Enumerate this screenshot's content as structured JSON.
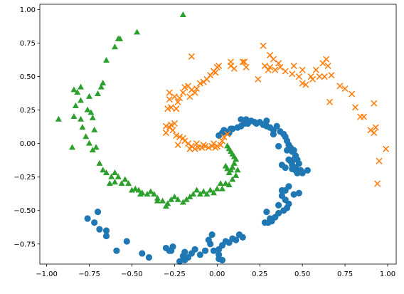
{
  "chart_data": {
    "type": "scatter",
    "title": "",
    "xlabel": "",
    "ylabel": "",
    "xlim": [
      -1.04,
      1.05
    ],
    "ylim": [
      -0.9,
      1.04
    ],
    "xticks": [
      -1.0,
      -0.75,
      -0.5,
      -0.25,
      0.0,
      0.25,
      0.5,
      0.75,
      1.0
    ],
    "xtick_labels": [
      "−1.00",
      "−0.75",
      "−0.50",
      "−0.25",
      "0.00",
      "0.25",
      "0.50",
      "0.75",
      "1.00"
    ],
    "yticks": [
      -0.75,
      -0.5,
      -0.25,
      0.0,
      0.25,
      0.5,
      0.75,
      1.0
    ],
    "ytick_labels": [
      "−0.75",
      "−0.50",
      "−0.25",
      "0.00",
      "0.25",
      "0.50",
      "0.75",
      "1.00"
    ],
    "grid": false,
    "legend": false,
    "series": [
      {
        "marker": "circle",
        "color": "#1f77b4",
        "points": [
          [
            0.01,
            0.06
          ],
          [
            0.03,
            0.08
          ],
          [
            0.05,
            0.09
          ],
          [
            0.07,
            0.08
          ],
          [
            0.04,
            0.1
          ],
          [
            0.09,
            0.11
          ],
          [
            0.12,
            0.12
          ],
          [
            0.14,
            0.13
          ],
          [
            0.16,
            0.15
          ],
          [
            0.18,
            0.15
          ],
          [
            0.2,
            0.17
          ],
          [
            0.22,
            0.16
          ],
          [
            0.14,
            0.18
          ],
          [
            0.17,
            0.18
          ],
          [
            0.25,
            0.16
          ],
          [
            0.27,
            0.14
          ],
          [
            0.29,
            0.17
          ],
          [
            0.31,
            0.12
          ],
          [
            0.33,
            0.1
          ],
          [
            0.35,
            0.13
          ],
          [
            0.37,
            0.09
          ],
          [
            0.39,
            0.07
          ],
          [
            0.4,
            0.05
          ],
          [
            0.41,
            0.02
          ],
          [
            0.42,
            -0.01
          ],
          [
            0.43,
            -0.03
          ],
          [
            0.44,
            -0.06
          ],
          [
            0.45,
            -0.05
          ],
          [
            0.46,
            -0.09
          ],
          [
            0.47,
            -0.12
          ],
          [
            0.48,
            -0.15
          ],
          [
            0.46,
            -0.18
          ],
          [
            0.44,
            -0.19
          ],
          [
            0.46,
            -0.2
          ],
          [
            0.49,
            -0.2
          ],
          [
            0.47,
            -0.22
          ],
          [
            0.5,
            -0.22
          ],
          [
            0.53,
            -0.2
          ],
          [
            0.42,
            -0.12
          ],
          [
            0.4,
            -0.18
          ],
          [
            0.38,
            -0.16
          ],
          [
            0.41,
            -0.05
          ],
          [
            0.36,
            -0.02
          ],
          [
            0.33,
            0.07
          ],
          [
            0.29,
            0.13
          ],
          [
            0.23,
            0.15
          ],
          [
            0.45,
            -0.12
          ],
          [
            0.44,
            -0.16
          ],
          [
            0.43,
            -0.13
          ],
          [
            0.08,
            0.11
          ],
          [
            0.42,
            -0.32
          ],
          [
            0.4,
            -0.35
          ],
          [
            0.38,
            -0.39
          ],
          [
            0.45,
            -0.38
          ],
          [
            0.4,
            -0.42
          ],
          [
            0.42,
            -0.45
          ],
          [
            0.41,
            -0.48
          ],
          [
            0.39,
            -0.5
          ],
          [
            0.36,
            -0.52
          ],
          [
            0.34,
            -0.55
          ],
          [
            0.32,
            -0.58
          ],
          [
            0.3,
            -0.59
          ],
          [
            0.28,
            -0.59
          ],
          [
            0.29,
            -0.51
          ],
          [
            0.36,
            -0.46
          ],
          [
            0.48,
            -0.37
          ],
          [
            0.38,
            -0.35
          ],
          [
            0.31,
            -0.56
          ],
          [
            0.15,
            -0.7
          ],
          [
            0.13,
            -0.68
          ],
          [
            0.11,
            -0.72
          ],
          [
            0.09,
            -0.71
          ],
          [
            0.07,
            -0.74
          ],
          [
            0.05,
            -0.73
          ],
          [
            0.03,
            -0.76
          ],
          [
            0.01,
            -0.79
          ],
          [
            -0.02,
            -0.8
          ],
          [
            -0.04,
            -0.75
          ],
          [
            -0.03,
            -0.68
          ],
          [
            -0.05,
            -0.72
          ],
          [
            0.01,
            -0.83
          ],
          [
            0.01,
            -0.86
          ],
          [
            -0.07,
            -0.8
          ],
          [
            -0.1,
            -0.83
          ],
          [
            -0.13,
            -0.79
          ],
          [
            -0.15,
            -0.82
          ],
          [
            -0.17,
            -0.85
          ],
          [
            -0.19,
            -0.87
          ],
          [
            -0.2,
            -0.84
          ],
          [
            -0.22,
            -0.88
          ],
          [
            -0.26,
            -0.77
          ],
          [
            -0.28,
            -0.8
          ],
          [
            -0.3,
            -0.78
          ],
          [
            -0.27,
            -0.8
          ],
          [
            -0.4,
            -0.85
          ],
          [
            -0.44,
            -0.82
          ],
          [
            -0.53,
            -0.73
          ],
          [
            -0.59,
            -0.8
          ],
          [
            -0.65,
            -0.69
          ],
          [
            -0.65,
            -0.65
          ],
          [
            -0.69,
            -0.64
          ],
          [
            -0.72,
            -0.59
          ],
          [
            -0.7,
            -0.51
          ],
          [
            -0.76,
            -0.56
          ],
          [
            0.03,
            -0.87
          ],
          [
            -0.19,
            -0.81
          ]
        ]
      },
      {
        "marker": "x",
        "color": "#ff7f0e",
        "points": [
          [
            0.06,
            0.07
          ],
          [
            0.04,
            0.05
          ],
          [
            0.03,
            0.02
          ],
          [
            0.02,
            -0.01
          ],
          [
            0.0,
            -0.02
          ],
          [
            -0.01,
            -0.03
          ],
          [
            -0.03,
            -0.02
          ],
          [
            -0.05,
            -0.03
          ],
          [
            -0.07,
            -0.02
          ],
          [
            -0.09,
            -0.03
          ],
          [
            -0.11,
            -0.03
          ],
          [
            -0.13,
            -0.04
          ],
          [
            -0.15,
            -0.02
          ],
          [
            -0.17,
            -0.0
          ],
          [
            -0.19,
            0.02
          ],
          [
            -0.2,
            0.04
          ],
          [
            -0.22,
            0.05
          ],
          [
            -0.24,
            0.06
          ],
          [
            -0.26,
            0.1
          ],
          [
            -0.28,
            0.12
          ],
          [
            -0.3,
            0.13
          ],
          [
            -0.25,
            0.15
          ],
          [
            -0.27,
            0.14
          ],
          [
            -0.3,
            0.08
          ],
          [
            -0.23,
            -0.01
          ],
          [
            -0.16,
            -0.04
          ],
          [
            -0.12,
            0.0
          ],
          [
            -0.08,
            -0.01
          ],
          [
            -0.02,
            0.0
          ],
          [
            -0.29,
            0.26
          ],
          [
            -0.27,
            0.27
          ],
          [
            -0.24,
            0.26
          ],
          [
            -0.28,
            0.33
          ],
          [
            -0.25,
            0.35
          ],
          [
            -0.23,
            0.31
          ],
          [
            -0.2,
            0.38
          ],
          [
            -0.19,
            0.42
          ],
          [
            -0.17,
            0.43
          ],
          [
            -0.15,
            0.4
          ],
          [
            -0.13,
            0.38
          ],
          [
            -0.12,
            0.41
          ],
          [
            -0.1,
            0.45
          ],
          [
            -0.08,
            0.46
          ],
          [
            -0.06,
            0.48
          ],
          [
            -0.04,
            0.51
          ],
          [
            -0.02,
            0.54
          ],
          [
            0.0,
            0.57
          ],
          [
            -0.01,
            0.53
          ],
          [
            0.01,
            0.58
          ],
          [
            -0.22,
            0.34
          ],
          [
            -0.16,
            0.35
          ],
          [
            -0.28,
            0.38
          ],
          [
            0.08,
            0.61
          ],
          [
            0.1,
            0.56
          ],
          [
            0.16,
            0.61
          ],
          [
            0.17,
            0.57
          ],
          [
            -0.15,
            0.65
          ],
          [
            0.15,
            0.61
          ],
          [
            0.08,
            0.58
          ],
          [
            0.27,
            0.73
          ],
          [
            0.28,
            0.58
          ],
          [
            0.3,
            0.55
          ],
          [
            0.31,
            0.57
          ],
          [
            0.31,
            0.66
          ],
          [
            0.33,
            0.63
          ],
          [
            0.34,
            0.55
          ],
          [
            0.36,
            0.6
          ],
          [
            0.37,
            0.57
          ],
          [
            0.4,
            0.54
          ],
          [
            0.45,
            0.58
          ],
          [
            0.48,
            0.5
          ],
          [
            0.5,
            0.45
          ],
          [
            0.5,
            0.55
          ],
          [
            0.55,
            0.5
          ],
          [
            0.58,
            0.55
          ],
          [
            0.6,
            0.5
          ],
          [
            0.63,
            0.5
          ],
          [
            0.64,
            0.63
          ],
          [
            0.65,
            0.58
          ],
          [
            0.67,
            0.51
          ],
          [
            0.66,
            0.31
          ],
          [
            0.72,
            0.43
          ],
          [
            0.75,
            0.41
          ],
          [
            0.79,
            0.37
          ],
          [
            0.81,
            0.27
          ],
          [
            0.84,
            0.2
          ],
          [
            0.86,
            0.2
          ],
          [
            0.9,
            0.1
          ],
          [
            0.92,
            0.3
          ],
          [
            0.92,
            0.08
          ],
          [
            0.93,
            0.12
          ],
          [
            0.95,
            -0.13
          ],
          [
            0.99,
            -0.04
          ],
          [
            0.94,
            -0.3
          ],
          [
            0.62,
            0.6
          ],
          [
            0.52,
            0.44
          ],
          [
            0.56,
            0.48
          ],
          [
            0.44,
            0.52
          ],
          [
            0.24,
            0.48
          ]
        ]
      },
      {
        "marker": "triangle",
        "color": "#2ca02c",
        "points": [
          [
            0.06,
            -0.02
          ],
          [
            0.07,
            -0.04
          ],
          [
            0.08,
            -0.06
          ],
          [
            0.09,
            -0.08
          ],
          [
            0.1,
            -0.1
          ],
          [
            0.11,
            -0.12
          ],
          [
            0.1,
            -0.15
          ],
          [
            0.09,
            -0.18
          ],
          [
            0.08,
            -0.2
          ],
          [
            0.07,
            -0.22
          ],
          [
            0.06,
            -0.19
          ],
          [
            0.05,
            -0.17
          ],
          [
            0.12,
            -0.2
          ],
          [
            0.11,
            -0.24
          ],
          [
            0.09,
            -0.27
          ],
          [
            0.07,
            -0.31
          ],
          [
            0.05,
            -0.3
          ],
          [
            0.03,
            -0.34
          ],
          [
            0.0,
            -0.34
          ],
          [
            -0.02,
            -0.37
          ],
          [
            -0.04,
            -0.35
          ],
          [
            -0.06,
            -0.38
          ],
          [
            -0.08,
            -0.36
          ],
          [
            -0.1,
            -0.38
          ],
          [
            -0.12,
            -0.35
          ],
          [
            -0.14,
            -0.38
          ],
          [
            -0.16,
            -0.4
          ],
          [
            -0.18,
            -0.42
          ],
          [
            -0.2,
            -0.44
          ],
          [
            -0.23,
            -0.42
          ],
          [
            -0.25,
            -0.4
          ],
          [
            -0.27,
            -0.42
          ],
          [
            -0.29,
            -0.45
          ],
          [
            -0.3,
            -0.47
          ],
          [
            -0.32,
            -0.43
          ],
          [
            -0.35,
            -0.41
          ],
          [
            -0.37,
            -0.38
          ],
          [
            -0.39,
            -0.36
          ],
          [
            -0.41,
            -0.38
          ],
          [
            -0.44,
            -0.37
          ],
          [
            -0.46,
            -0.35
          ],
          [
            -0.48,
            -0.34
          ],
          [
            -0.5,
            -0.35
          ],
          [
            -0.52,
            -0.3
          ],
          [
            -0.54,
            -0.27
          ],
          [
            -0.56,
            -0.3
          ],
          [
            -0.58,
            -0.25
          ],
          [
            -0.6,
            -0.22
          ],
          [
            -0.62,
            -0.25
          ],
          [
            -0.63,
            -0.3
          ],
          [
            -0.65,
            -0.22
          ],
          [
            -0.67,
            -0.2
          ],
          [
            -0.69,
            -0.15
          ],
          [
            -0.71,
            -0.03
          ],
          [
            -0.73,
            -0.05
          ],
          [
            -0.75,
            0.0
          ],
          [
            -0.77,
            0.05
          ],
          [
            -0.79,
            0.12
          ],
          [
            -0.8,
            0.18
          ],
          [
            -0.84,
            0.2
          ],
          [
            -0.76,
            0.25
          ],
          [
            -0.83,
            0.28
          ],
          [
            -0.8,
            0.32
          ],
          [
            -0.82,
            0.38
          ],
          [
            -0.84,
            0.4
          ],
          [
            -0.8,
            0.42
          ],
          [
            -0.75,
            0.35
          ],
          [
            -0.74,
            0.23
          ],
          [
            -0.73,
            0.19
          ],
          [
            -0.72,
            0.1
          ],
          [
            -0.7,
            0.37
          ],
          [
            -0.68,
            0.42
          ],
          [
            -0.67,
            0.45
          ],
          [
            -0.65,
            0.62
          ],
          [
            -0.6,
            0.72
          ],
          [
            -0.58,
            0.78
          ],
          [
            -0.57,
            0.78
          ],
          [
            -0.47,
            0.83
          ],
          [
            -0.2,
            0.96
          ],
          [
            -0.93,
            0.18
          ],
          [
            -0.85,
            -0.03
          ],
          [
            -0.6,
            -0.29
          ],
          [
            -0.35,
            -0.43
          ],
          [
            0.02,
            -0.3
          ],
          [
            -0.45,
            -0.38
          ]
        ]
      }
    ]
  }
}
